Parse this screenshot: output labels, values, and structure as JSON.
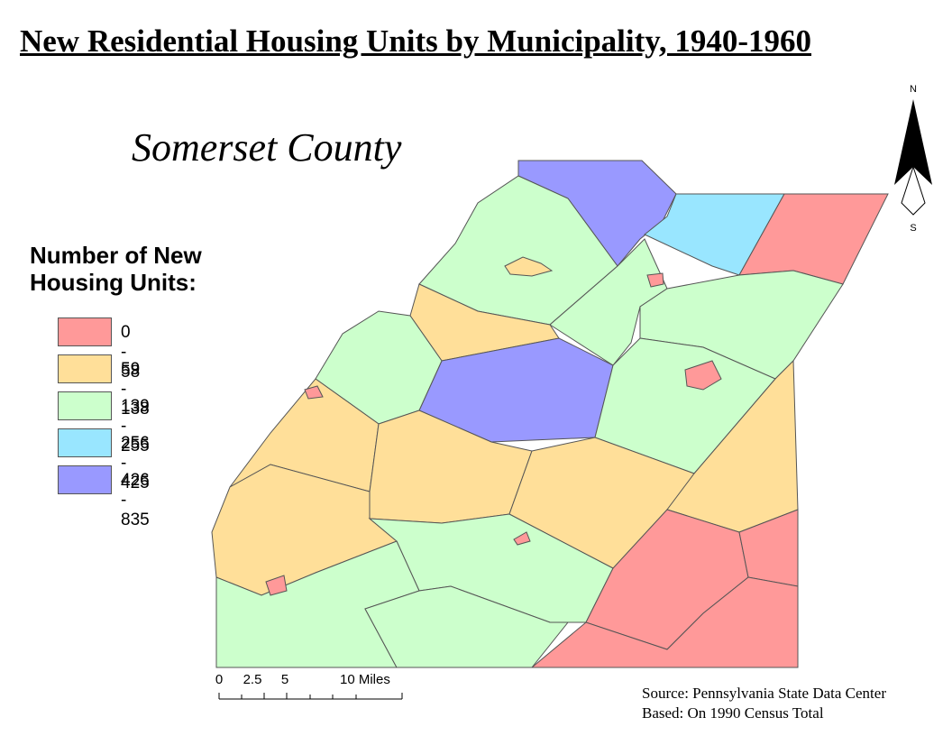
{
  "title": "New Residential Housing Units by Municipality, 1940-1960",
  "subtitle": "Somerset County",
  "legend": {
    "title": "Number of New Housing Units:",
    "items": [
      {
        "label": "0 - 58",
        "color": "#ff9999"
      },
      {
        "label": "59 - 138",
        "color": "#ffdf99"
      },
      {
        "label": "139 - 255",
        "color": "#ccffcc"
      },
      {
        "label": "256 - 425",
        "color": "#99e6ff"
      },
      {
        "label": "426 - 835",
        "color": "#9999ff"
      }
    ]
  },
  "scale_bar": {
    "labels": [
      "0",
      "2.5",
      "5",
      "10 Miles"
    ]
  },
  "north_arrow": {
    "north": "N",
    "south": "S"
  },
  "source": [
    "Source: Pennsylvania State Data Center",
    "Based: On 1990 Census Total"
  ]
}
